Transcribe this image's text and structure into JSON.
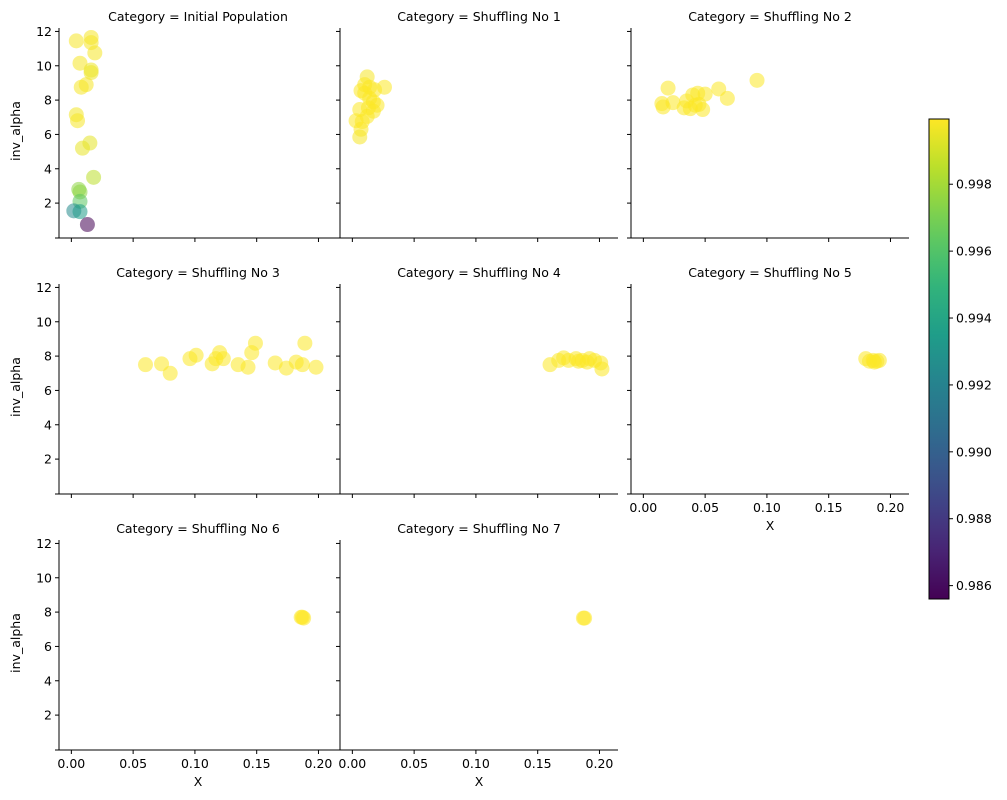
{
  "chart_data": {
    "type": "scatter",
    "xlabel": "X",
    "ylabel": "inv_alpha",
    "xlim": [
      -0.01,
      0.215
    ],
    "ylim": [
      0.2,
      12.2
    ],
    "x_ticks": [
      0.0,
      0.05,
      0.1,
      0.15,
      0.2
    ],
    "x_tick_labels": [
      "0.00",
      "0.05",
      "0.10",
      "0.15",
      "0.20"
    ],
    "y_ticks": [
      2,
      4,
      6,
      8,
      10,
      12
    ],
    "y_tick_labels": [
      "2",
      "4",
      "6",
      "8",
      "10",
      "12"
    ],
    "colorbar": {
      "colormap": "viridis",
      "min": 0.9856,
      "max": 0.99995,
      "ticks": [
        0.986,
        0.988,
        0.99,
        0.992,
        0.994,
        0.996,
        0.998
      ],
      "tick_labels": [
        "0.986",
        "0.988",
        "0.990",
        "0.992",
        "0.994",
        "0.996",
        "0.998"
      ]
    },
    "marker_alpha": 0.55,
    "panels": [
      {
        "title": "Category = Initial Population",
        "points": [
          [
            0.004,
            11.45,
            0.9998
          ],
          [
            0.016,
            11.65,
            0.9998
          ],
          [
            0.016,
            11.35,
            0.9998
          ],
          [
            0.019,
            10.75,
            0.9998
          ],
          [
            0.007,
            10.15,
            0.9998
          ],
          [
            0.016,
            9.75,
            0.9996
          ],
          [
            0.016,
            9.6,
            0.9996
          ],
          [
            0.012,
            8.9,
            0.9998
          ],
          [
            0.008,
            8.75,
            0.9998
          ],
          [
            0.004,
            7.15,
            0.9997
          ],
          [
            0.005,
            6.8,
            0.9998
          ],
          [
            0.015,
            5.5,
            0.9994
          ],
          [
            0.009,
            5.2,
            0.9995
          ],
          [
            0.018,
            3.5,
            0.9985
          ],
          [
            0.006,
            2.8,
            0.9975
          ],
          [
            0.007,
            2.65,
            0.9975
          ],
          [
            0.007,
            2.1,
            0.9963
          ],
          [
            0.002,
            1.55,
            0.9925
          ],
          [
            0.007,
            1.5,
            0.9935
          ],
          [
            0.013,
            0.75,
            0.9856
          ]
        ]
      },
      {
        "title": "Category = Shuffling No 1",
        "points": [
          [
            0.012,
            9.35,
            0.9998
          ],
          [
            0.01,
            8.9,
            0.9999
          ],
          [
            0.014,
            8.75,
            0.9999
          ],
          [
            0.018,
            8.6,
            0.9999
          ],
          [
            0.026,
            8.75,
            0.9999
          ],
          [
            0.007,
            8.55,
            0.9999
          ],
          [
            0.01,
            8.4,
            0.9999
          ],
          [
            0.014,
            8.1,
            0.9999
          ],
          [
            0.017,
            7.9,
            0.9999
          ],
          [
            0.02,
            7.7,
            0.9999
          ],
          [
            0.013,
            7.55,
            0.9999
          ],
          [
            0.006,
            7.45,
            0.9999
          ],
          [
            0.017,
            7.35,
            0.9999
          ],
          [
            0.012,
            7.05,
            0.9999
          ],
          [
            0.003,
            6.8,
            0.9999
          ],
          [
            0.008,
            6.75,
            0.9999
          ],
          [
            0.007,
            6.3,
            0.9999
          ],
          [
            0.006,
            5.85,
            0.9998
          ]
        ]
      },
      {
        "title": "Category = Shuffling No 2",
        "points": [
          [
            0.092,
            9.15,
            0.9999
          ],
          [
            0.02,
            8.7,
            0.9999
          ],
          [
            0.061,
            8.65,
            0.9999
          ],
          [
            0.044,
            8.4,
            0.9999
          ],
          [
            0.05,
            8.35,
            0.9999
          ],
          [
            0.04,
            8.3,
            0.9999
          ],
          [
            0.068,
            8.1,
            0.9999
          ],
          [
            0.035,
            7.95,
            0.9999
          ],
          [
            0.015,
            7.8,
            0.9999
          ],
          [
            0.024,
            7.85,
            0.9999
          ],
          [
            0.045,
            7.75,
            0.9999
          ],
          [
            0.016,
            7.6,
            0.9999
          ],
          [
            0.033,
            7.55,
            0.9999
          ],
          [
            0.038,
            7.5,
            0.9999
          ],
          [
            0.048,
            7.45,
            0.9999
          ],
          [
            0.042,
            7.7,
            0.9999
          ]
        ]
      },
      {
        "title": "Category = Shuffling No 3",
        "points": [
          [
            0.189,
            8.75,
            0.9999
          ],
          [
            0.149,
            8.75,
            0.9999
          ],
          [
            0.12,
            8.2,
            0.9999
          ],
          [
            0.146,
            8.2,
            0.9999
          ],
          [
            0.101,
            8.05,
            0.9999
          ],
          [
            0.096,
            7.85,
            0.9999
          ],
          [
            0.117,
            7.85,
            0.9999
          ],
          [
            0.123,
            7.85,
            0.9999
          ],
          [
            0.182,
            7.65,
            0.9999
          ],
          [
            0.165,
            7.6,
            0.9999
          ],
          [
            0.06,
            7.5,
            0.9999
          ],
          [
            0.073,
            7.55,
            0.9999
          ],
          [
            0.114,
            7.55,
            0.9999
          ],
          [
            0.135,
            7.5,
            0.9999
          ],
          [
            0.187,
            7.5,
            0.9999
          ],
          [
            0.143,
            7.35,
            0.9999
          ],
          [
            0.174,
            7.3,
            0.9999
          ],
          [
            0.198,
            7.35,
            0.9999
          ],
          [
            0.08,
            7.0,
            0.9999
          ]
        ]
      },
      {
        "title": "Category = Shuffling No 4",
        "points": [
          [
            0.171,
            7.9,
            0.9999
          ],
          [
            0.181,
            7.85,
            0.9999
          ],
          [
            0.192,
            7.85,
            0.9999
          ],
          [
            0.167,
            7.75,
            0.9999
          ],
          [
            0.175,
            7.75,
            0.9999
          ],
          [
            0.186,
            7.75,
            0.9999
          ],
          [
            0.196,
            7.75,
            0.9999
          ],
          [
            0.19,
            7.65,
            0.9999
          ],
          [
            0.183,
            7.7,
            0.9999
          ],
          [
            0.201,
            7.6,
            0.9999
          ],
          [
            0.16,
            7.5,
            0.9999
          ],
          [
            0.202,
            7.25,
            0.9999
          ]
        ]
      },
      {
        "title": "Category = Shuffling No 5",
        "points": [
          [
            0.18,
            7.85,
            0.9999
          ],
          [
            0.186,
            7.75,
            0.9999
          ],
          [
            0.189,
            7.7,
            0.9999
          ],
          [
            0.183,
            7.7,
            0.9999
          ],
          [
            0.191,
            7.75,
            0.9999
          ],
          [
            0.187,
            7.65,
            0.9999
          ]
        ]
      },
      {
        "title": "Category = Shuffling No 6",
        "points": [
          [
            0.186,
            7.7,
            0.99995
          ],
          [
            0.188,
            7.65,
            0.99995
          ],
          [
            0.187,
            7.7,
            0.99995
          ]
        ]
      },
      {
        "title": "Category = Shuffling No 7",
        "points": [
          [
            0.187,
            7.65,
            0.99995
          ],
          [
            0.188,
            7.65,
            0.99995
          ]
        ]
      }
    ]
  }
}
